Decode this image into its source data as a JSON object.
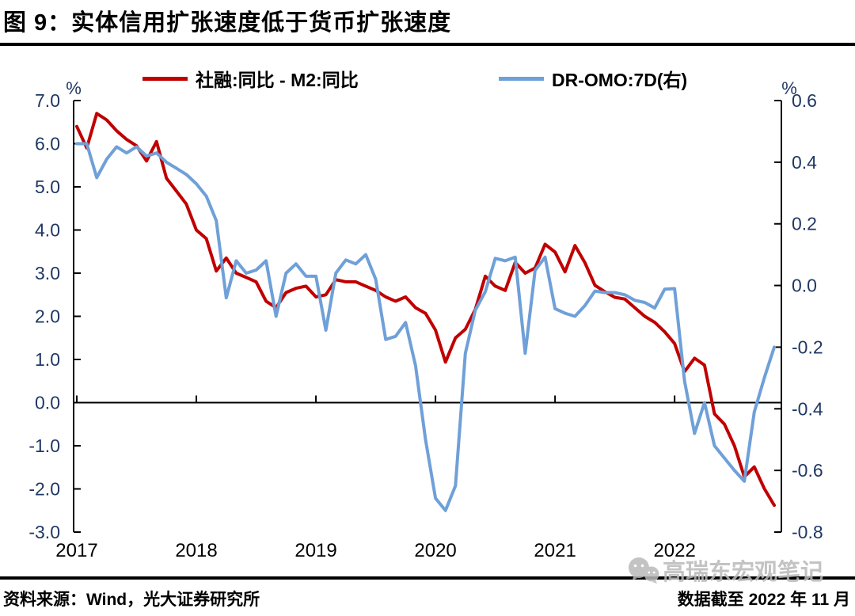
{
  "page": {
    "title": "图 9：实体信用扩张速度低于货币扩张速度",
    "source_left": "资料来源：Wind，光大证券研究所",
    "source_right": "数据截至 2022 年 11 月",
    "watermark": "高瑞东宏观笔记"
  },
  "colors": {
    "series_red": "#C00000",
    "series_blue": "#6FA0D8",
    "axis_label": "#1F3864",
    "axis_line": "#000000",
    "divider": "#000000",
    "watermark_gray": "#b9b9b9"
  },
  "legend": [
    {
      "label": "社融:同比 - M2:同比",
      "color": "#C00000"
    },
    {
      "label": "DR-OMO:7D(右)",
      "color": "#6FA0D8"
    }
  ],
  "chart_data": {
    "type": "line",
    "title": "图 9：实体信用扩张速度低于货币扩张速度",
    "grid": false,
    "legend_position": "top",
    "x_tick_labels": [
      "2017",
      "2018",
      "2019",
      "2020",
      "2021",
      "2022"
    ],
    "x_tick_indices": [
      0,
      12,
      24,
      36,
      48,
      60
    ],
    "left_axis": {
      "unit": "%",
      "min": -3.0,
      "max": 7.0,
      "ticks": [
        "7.0",
        "6.0",
        "5.0",
        "4.0",
        "3.0",
        "2.0",
        "1.0",
        "0.0",
        "-1.0",
        "-2.0",
        "-3.0"
      ]
    },
    "right_axis": {
      "unit": "%",
      "min": -0.8,
      "max": 0.6,
      "ticks": [
        "0.6",
        "0.4",
        "0.2",
        "0.0",
        "-0.2",
        "-0.4",
        "-0.6",
        "-0.8"
      ]
    },
    "series": [
      {
        "name": "社融:同比 - M2:同比",
        "axis": "left",
        "color": "#C00000",
        "values": [
          6.4,
          5.9,
          6.7,
          6.55,
          6.3,
          6.1,
          5.95,
          5.6,
          6.05,
          5.2,
          4.9,
          4.6,
          4.0,
          3.8,
          3.05,
          3.35,
          3.0,
          2.9,
          2.8,
          2.35,
          2.2,
          2.55,
          2.65,
          2.7,
          2.45,
          2.5,
          2.85,
          2.8,
          2.8,
          2.7,
          2.6,
          2.45,
          2.35,
          2.45,
          2.2,
          2.07,
          1.68,
          0.94,
          1.5,
          1.7,
          2.16,
          2.93,
          2.7,
          2.6,
          3.25,
          3.0,
          3.12,
          3.67,
          3.49,
          3.03,
          3.64,
          3.24,
          2.72,
          2.57,
          2.44,
          2.4,
          2.2,
          2.0,
          1.86,
          1.64,
          1.37,
          0.72,
          1.03,
          0.87,
          -0.26,
          -0.5,
          -1.0,
          -1.72,
          -1.49,
          -1.99,
          -2.38
        ]
      },
      {
        "name": "DR-OMO:7D(右)",
        "axis": "right",
        "color": "#6FA0D8",
        "values": [
          0.46,
          0.46,
          0.35,
          0.41,
          0.45,
          0.43,
          0.45,
          0.42,
          0.43,
          0.4,
          0.38,
          0.36,
          0.33,
          0.29,
          0.21,
          -0.04,
          0.08,
          0.04,
          0.05,
          0.08,
          -0.1,
          0.04,
          0.07,
          0.03,
          0.03,
          -0.145,
          0.04,
          0.083,
          0.07,
          0.1,
          0.02,
          -0.175,
          -0.165,
          -0.12,
          -0.26,
          -0.5,
          -0.69,
          -0.73,
          -0.65,
          -0.22,
          -0.08,
          -0.02,
          0.088,
          0.08,
          0.092,
          -0.22,
          0.049,
          0.092,
          -0.075,
          -0.09,
          -0.1,
          -0.065,
          -0.018,
          -0.023,
          -0.023,
          -0.03,
          -0.048,
          -0.055,
          -0.073,
          -0.012,
          -0.01,
          -0.31,
          -0.48,
          -0.38,
          -0.52,
          -0.56,
          -0.6,
          -0.635,
          -0.41,
          -0.3,
          -0.2
        ]
      }
    ]
  }
}
